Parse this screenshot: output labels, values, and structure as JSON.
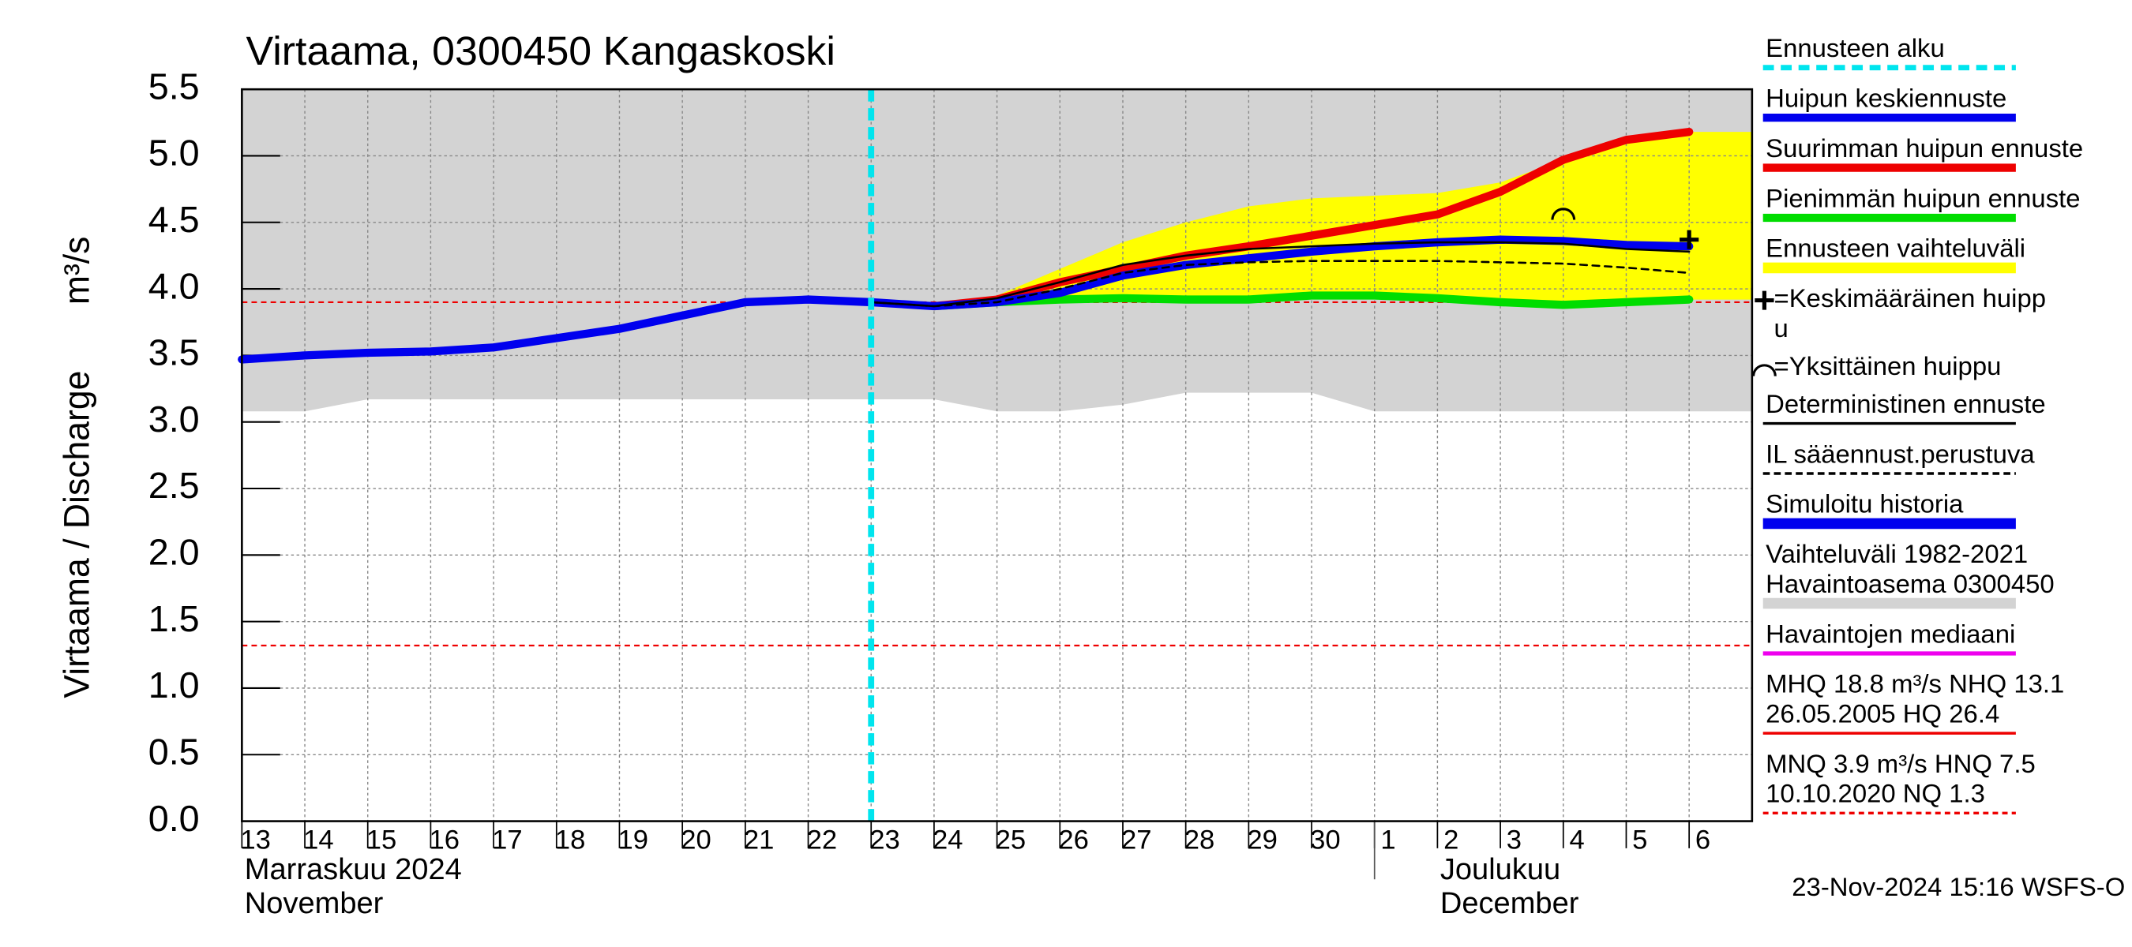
{
  "chart_data": {
    "type": "line",
    "title": "Virtaama, 0300450 Kangaskoski",
    "ylabel": "Virtaama / Discharge",
    "yunit": "m³/s",
    "categories": [
      "13",
      "14",
      "15",
      "16",
      "17",
      "18",
      "19",
      "20",
      "21",
      "22",
      "23",
      "24",
      "25",
      "26",
      "27",
      "28",
      "29",
      "30",
      "1",
      "2",
      "3",
      "4",
      "5",
      "6"
    ],
    "ylim": [
      0,
      5.5
    ],
    "yticks": [
      {
        "value": 0,
        "label": "0.0"
      },
      0.5,
      {
        "value": 1,
        "label": "1.0"
      },
      1.5,
      {
        "value": 2,
        "label": "2.0"
      },
      2.5,
      {
        "value": 3,
        "label": "3.0"
      },
      3.5,
      {
        "value": 4,
        "label": "4.0"
      },
      4.5,
      {
        "value": 5,
        "label": "5.0"
      },
      5.5
    ],
    "grid": true,
    "legend": [
      {
        "label": [
          "Ennusteen alku"
        ],
        "color": "#00e5ee",
        "style": "dashed",
        "width": 4
      },
      {
        "label": [
          "Huipun keskiennuste"
        ],
        "color": "#0000ee",
        "style": "solid",
        "width": 6
      },
      {
        "label": [
          "Suurimman huipun ennuste"
        ],
        "color": "#ee0000",
        "style": "solid",
        "width": 6
      },
      {
        "label": [
          "Pienimmän huipun ennuste"
        ],
        "color": "#00dd00",
        "style": "solid",
        "width": 6
      },
      {
        "label": [
          "Ennusteen vaihteluväli"
        ],
        "color": "#ffff00",
        "style": "solid",
        "width": 8
      },
      {
        "label": [
          "=Keskimääräinen huipp",
          "u"
        ],
        "symbol": "plus"
      },
      {
        "label": [
          "=Yksittäinen huippu"
        ],
        "symbol": "arc"
      },
      {
        "label": [
          "Deterministinen ennuste"
        ],
        "color": "#000000",
        "style": "solid",
        "width": 2
      },
      {
        "label": [
          "IL sääennust.perustuva"
        ],
        "color": "#000000",
        "style": "dashed",
        "width": 2
      },
      {
        "label": [
          "Simuloitu historia"
        ],
        "color": "#0000ee",
        "style": "solid",
        "width": 8
      },
      {
        "label": [
          "Vaihteluväli 1982-2021",
          " Havaintoasema 0300450"
        ],
        "color": "#d3d3d3",
        "style": "solid",
        "width": 8
      },
      {
        "label": [
          "Havaintojen mediaani"
        ],
        "color": "#ee00ee",
        "style": "solid",
        "width": 3
      },
      {
        "label": [
          "MHQ 18.8 m³/s NHQ 13.1",
          "26.05.2005 HQ 26.4"
        ],
        "color": "#ee0000",
        "style": "solid",
        "width": 2
      },
      {
        "label": [
          "MNQ  3.9 m³/s HNQ  7.5",
          "10.10.2020 NQ  1.3"
        ],
        "color": "#ee0000",
        "style": "dotted",
        "width": 2
      }
    ],
    "bands": [
      {
        "legend": 10,
        "color": "#d3d3d3",
        "upper": [
          5.5,
          5.5,
          5.5,
          5.5,
          5.5,
          5.5,
          5.5,
          5.5,
          5.5,
          5.5,
          5.5,
          5.5,
          5.5,
          5.5,
          5.5,
          5.5,
          5.5,
          5.5,
          5.5,
          5.5,
          5.5,
          5.5,
          5.5,
          5.5
        ],
        "lower": [
          3.08,
          3.08,
          3.17,
          3.17,
          3.17,
          3.17,
          3.17,
          3.17,
          3.17,
          3.17,
          3.17,
          3.17,
          3.08,
          3.08,
          3.13,
          3.22,
          3.22,
          3.22,
          3.08,
          3.08,
          3.08,
          3.08,
          3.08,
          3.08
        ]
      },
      {
        "legend": 4,
        "color": "#ffff00",
        "upper": [
          null,
          null,
          null,
          null,
          null,
          null,
          null,
          null,
          null,
          null,
          3.9,
          3.88,
          3.95,
          4.15,
          4.35,
          4.5,
          4.62,
          4.68,
          4.7,
          4.72,
          4.8,
          4.97,
          5.12,
          5.18
        ],
        "lower": [
          null,
          null,
          null,
          null,
          null,
          null,
          null,
          null,
          null,
          null,
          3.9,
          3.87,
          3.9,
          3.92,
          3.93,
          3.92,
          3.92,
          3.95,
          3.95,
          3.93,
          3.9,
          3.88,
          3.9,
          3.92
        ]
      }
    ],
    "hlines": [
      {
        "legend": 13,
        "value": 3.9,
        "color": "#ee0000"
      },
      {
        "legend": 13,
        "value": 1.32,
        "color": "#ee0000"
      }
    ],
    "series": [
      {
        "legend": 3,
        "color": "#00dd00",
        "width": 6,
        "values": [
          null,
          null,
          null,
          null,
          null,
          null,
          null,
          null,
          null,
          null,
          null,
          3.87,
          3.9,
          3.92,
          3.93,
          3.92,
          3.92,
          3.95,
          3.95,
          3.93,
          3.9,
          3.88,
          3.9,
          3.92
        ]
      },
      {
        "legend": 2,
        "color": "#ee0000",
        "width": 6,
        "values": [
          null,
          null,
          null,
          null,
          null,
          null,
          null,
          null,
          null,
          null,
          null,
          3.87,
          3.92,
          4.05,
          4.15,
          4.25,
          4.32,
          4.4,
          4.48,
          4.56,
          4.73,
          4.97,
          5.12,
          5.18
        ]
      },
      {
        "legend": 9,
        "color": "#0000ee",
        "width": 6,
        "values": [
          3.47,
          3.5,
          3.52,
          3.53,
          3.56,
          3.63,
          3.7,
          3.8,
          3.9,
          3.92,
          3.9,
          null,
          null,
          null,
          null,
          null,
          null,
          null,
          null,
          null,
          null,
          null,
          null,
          null
        ]
      },
      {
        "legend": 1,
        "color": "#0000ee",
        "width": 6,
        "values": [
          null,
          null,
          null,
          null,
          null,
          null,
          null,
          null,
          null,
          null,
          3.9,
          3.87,
          3.9,
          3.97,
          4.1,
          4.18,
          4.23,
          4.28,
          4.32,
          4.35,
          4.37,
          4.36,
          4.33,
          4.32
        ]
      },
      {
        "legend": 7,
        "color": "#000000",
        "width": 1.5,
        "values": [
          null,
          null,
          null,
          null,
          null,
          null,
          null,
          null,
          null,
          null,
          3.9,
          3.87,
          3.93,
          4.05,
          4.18,
          4.25,
          4.3,
          4.32,
          4.34,
          4.35,
          4.35,
          4.34,
          4.3,
          4.28
        ]
      },
      {
        "legend": 8,
        "color": "#000000",
        "width": 1.5,
        "dash": true,
        "values": [
          null,
          null,
          null,
          null,
          null,
          null,
          null,
          null,
          null,
          null,
          3.9,
          3.87,
          3.9,
          4.0,
          4.12,
          4.18,
          4.2,
          4.21,
          4.21,
          4.21,
          4.2,
          4.19,
          4.16,
          4.12
        ]
      }
    ],
    "forecast_start": "23",
    "markers": [
      {
        "symbol": "plus",
        "x": "6",
        "y": 4.37
      },
      {
        "symbol": "arc",
        "x": "4",
        "y": 4.58
      }
    ],
    "months": [
      {
        "at": "13",
        "lines": [
          "Marraskuu 2024",
          "November"
        ]
      },
      {
        "at": "2",
        "lines": [
          "Joulukuu",
          "December"
        ]
      }
    ],
    "month_boundary": "1",
    "footer": "23-Nov-2024 15:16 WSFS-O"
  }
}
